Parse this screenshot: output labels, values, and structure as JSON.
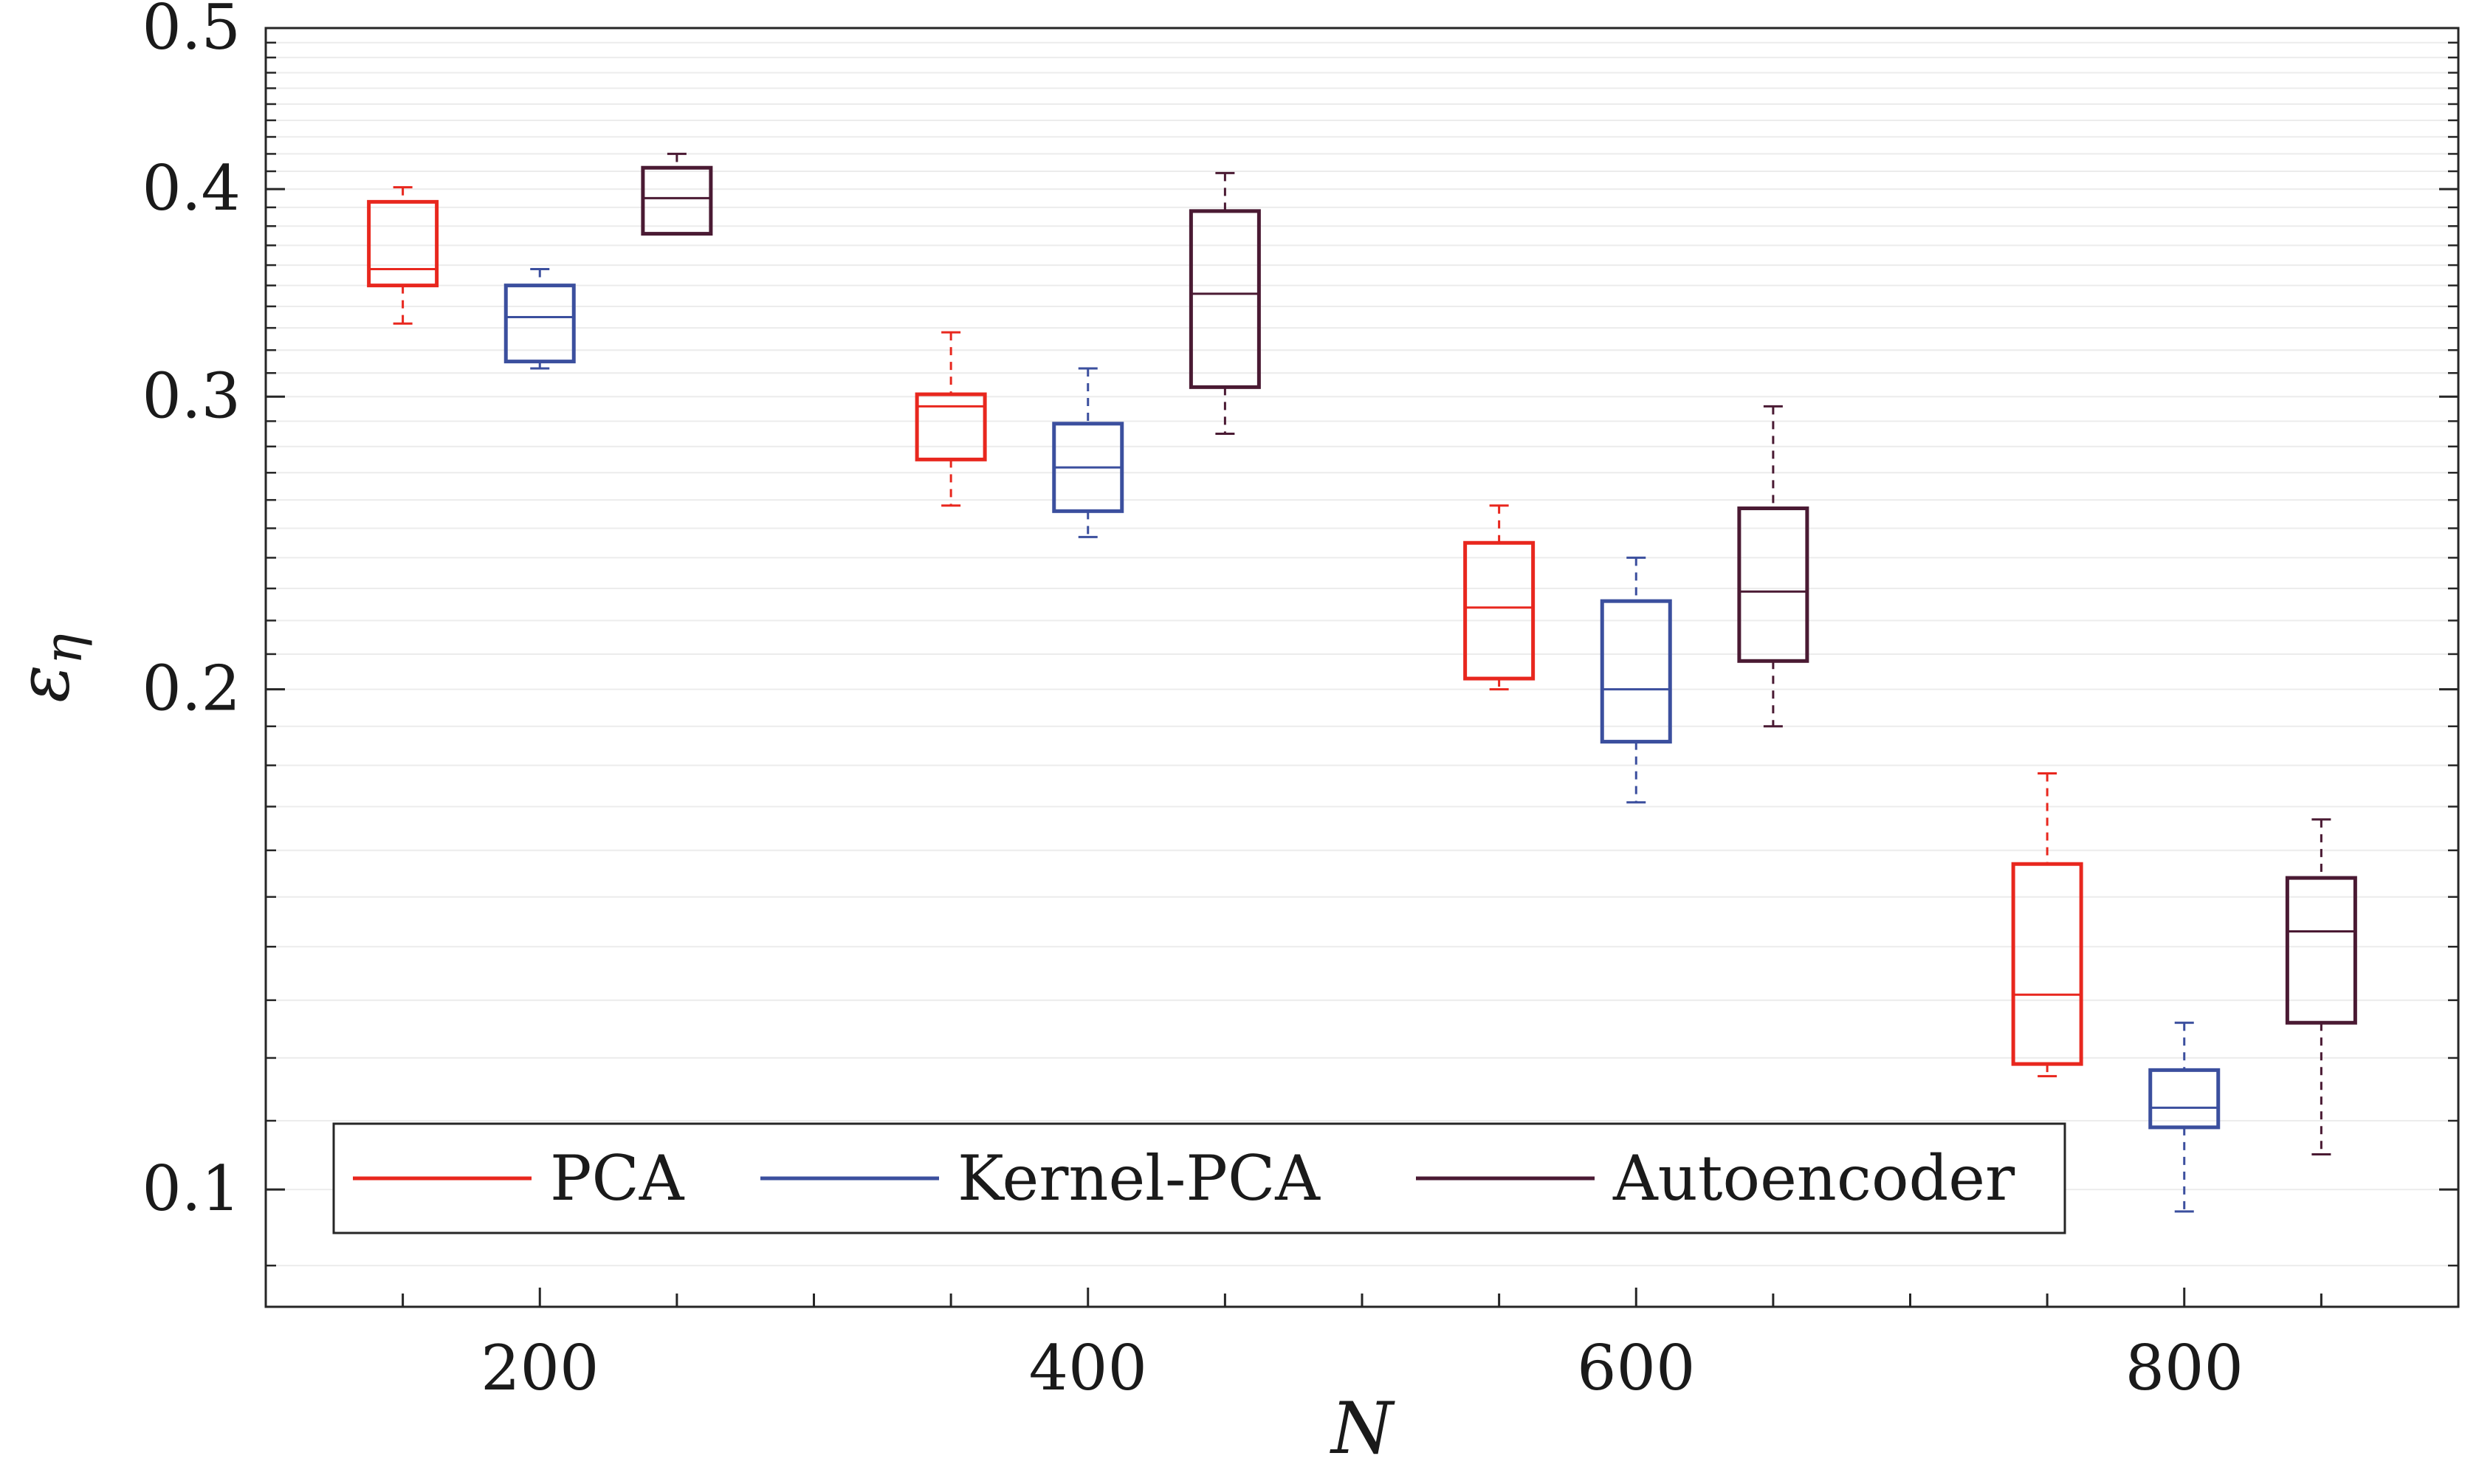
{
  "chart_data": {
    "type": "boxplot",
    "title": "",
    "xlabel": "N",
    "ylabel_main": "ε",
    "ylabel_sub": "η",
    "y_scale": "log",
    "ylim": [
      0.085,
      0.5
    ],
    "xlim": [
      100,
      900
    ],
    "x_ticks": [
      200,
      400,
      600,
      800
    ],
    "y_ticks": [
      0.1,
      0.2,
      0.3,
      0.4,
      0.5
    ],
    "y_tick_labels": [
      "0.1",
      "0.2",
      "0.3",
      "0.4",
      "0.5"
    ],
    "grid": true,
    "legend_position": "bottom-left",
    "series": [
      {
        "name": "PCA",
        "color": "#e8271e",
        "boxes": [
          {
            "x": 150,
            "whisker_low": 0.332,
            "q1": 0.35,
            "median": 0.358,
            "q3": 0.393,
            "whisker_high": 0.401
          },
          {
            "x": 350,
            "whisker_low": 0.258,
            "q1": 0.275,
            "median": 0.296,
            "q3": 0.301,
            "whisker_high": 0.328
          },
          {
            "x": 550,
            "whisker_low": 0.2,
            "q1": 0.203,
            "median": 0.224,
            "q3": 0.245,
            "whisker_high": 0.258
          },
          {
            "x": 750,
            "whisker_low": 0.117,
            "q1": 0.119,
            "median": 0.131,
            "q3": 0.157,
            "whisker_high": 0.178
          }
        ]
      },
      {
        "name": "Kernel-PCA",
        "color": "#3b4f9e",
        "boxes": [
          {
            "x": 200,
            "whisker_low": 0.312,
            "q1": 0.315,
            "median": 0.335,
            "q3": 0.35,
            "whisker_high": 0.358
          },
          {
            "x": 400,
            "whisker_low": 0.247,
            "q1": 0.256,
            "median": 0.272,
            "q3": 0.289,
            "whisker_high": 0.312
          },
          {
            "x": 600,
            "whisker_low": 0.171,
            "q1": 0.186,
            "median": 0.2,
            "q3": 0.226,
            "whisker_high": 0.24
          },
          {
            "x": 800,
            "whisker_low": 0.097,
            "q1": 0.109,
            "median": 0.112,
            "q3": 0.118,
            "whisker_high": 0.126
          }
        ]
      },
      {
        "name": "Autoencoder",
        "color": "#4a1a33",
        "boxes": [
          {
            "x": 250,
            "whisker_low": 0.376,
            "q1": 0.376,
            "median": 0.395,
            "q3": 0.412,
            "whisker_high": 0.42
          },
          {
            "x": 450,
            "whisker_low": 0.285,
            "q1": 0.304,
            "median": 0.346,
            "q3": 0.388,
            "whisker_high": 0.409
          },
          {
            "x": 650,
            "whisker_low": 0.19,
            "q1": 0.208,
            "median": 0.229,
            "q3": 0.257,
            "whisker_high": 0.296
          },
          {
            "x": 850,
            "whisker_low": 0.105,
            "q1": 0.126,
            "median": 0.143,
            "q3": 0.154,
            "whisker_high": 0.167
          }
        ]
      }
    ]
  }
}
